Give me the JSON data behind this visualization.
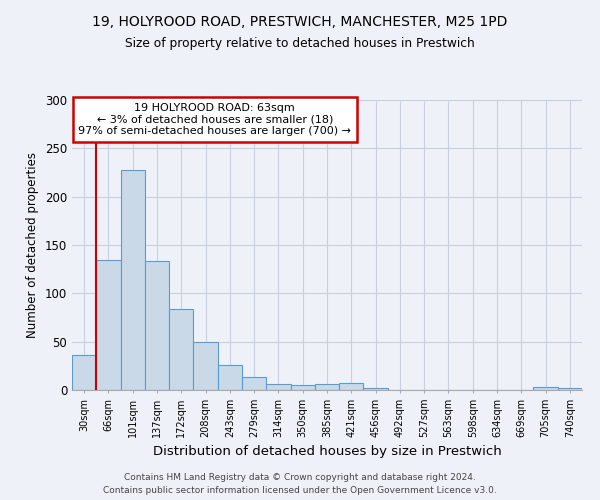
{
  "title1": "19, HOLYROOD ROAD, PRESTWICH, MANCHESTER, M25 1PD",
  "title2": "Size of property relative to detached houses in Prestwich",
  "xlabel": "Distribution of detached houses by size in Prestwich",
  "ylabel": "Number of detached properties",
  "annotation_lines": [
    "19 HOLYROOD ROAD: 63sqm",
    "← 3% of detached houses are smaller (18)",
    "97% of semi-detached houses are larger (700) →"
  ],
  "bin_labels": [
    "30sqm",
    "66sqm",
    "101sqm",
    "137sqm",
    "172sqm",
    "208sqm",
    "243sqm",
    "279sqm",
    "314sqm",
    "350sqm",
    "385sqm",
    "421sqm",
    "456sqm",
    "492sqm",
    "527sqm",
    "563sqm",
    "598sqm",
    "634sqm",
    "669sqm",
    "705sqm",
    "740sqm"
  ],
  "bar_heights": [
    36,
    135,
    228,
    133,
    84,
    50,
    26,
    13,
    6,
    5,
    6,
    7,
    2,
    0,
    0,
    0,
    0,
    0,
    0,
    3,
    2
  ],
  "bar_color": "#c9d9e8",
  "bar_edge_color": "#5b9bd5",
  "property_line_x": 1,
  "property_line_color": "#cc0000",
  "annotation_box_color": "#cc0000",
  "ylim": [
    0,
    300
  ],
  "yticks": [
    0,
    50,
    100,
    150,
    200,
    250,
    300
  ],
  "footnote1": "Contains HM Land Registry data © Crown copyright and database right 2024.",
  "footnote2": "Contains public sector information licensed under the Open Government Licence v3.0.",
  "bg_color": "#eef2f8",
  "plot_bg_color": "#eef2f8",
  "grid_color": "#c8cfe0"
}
